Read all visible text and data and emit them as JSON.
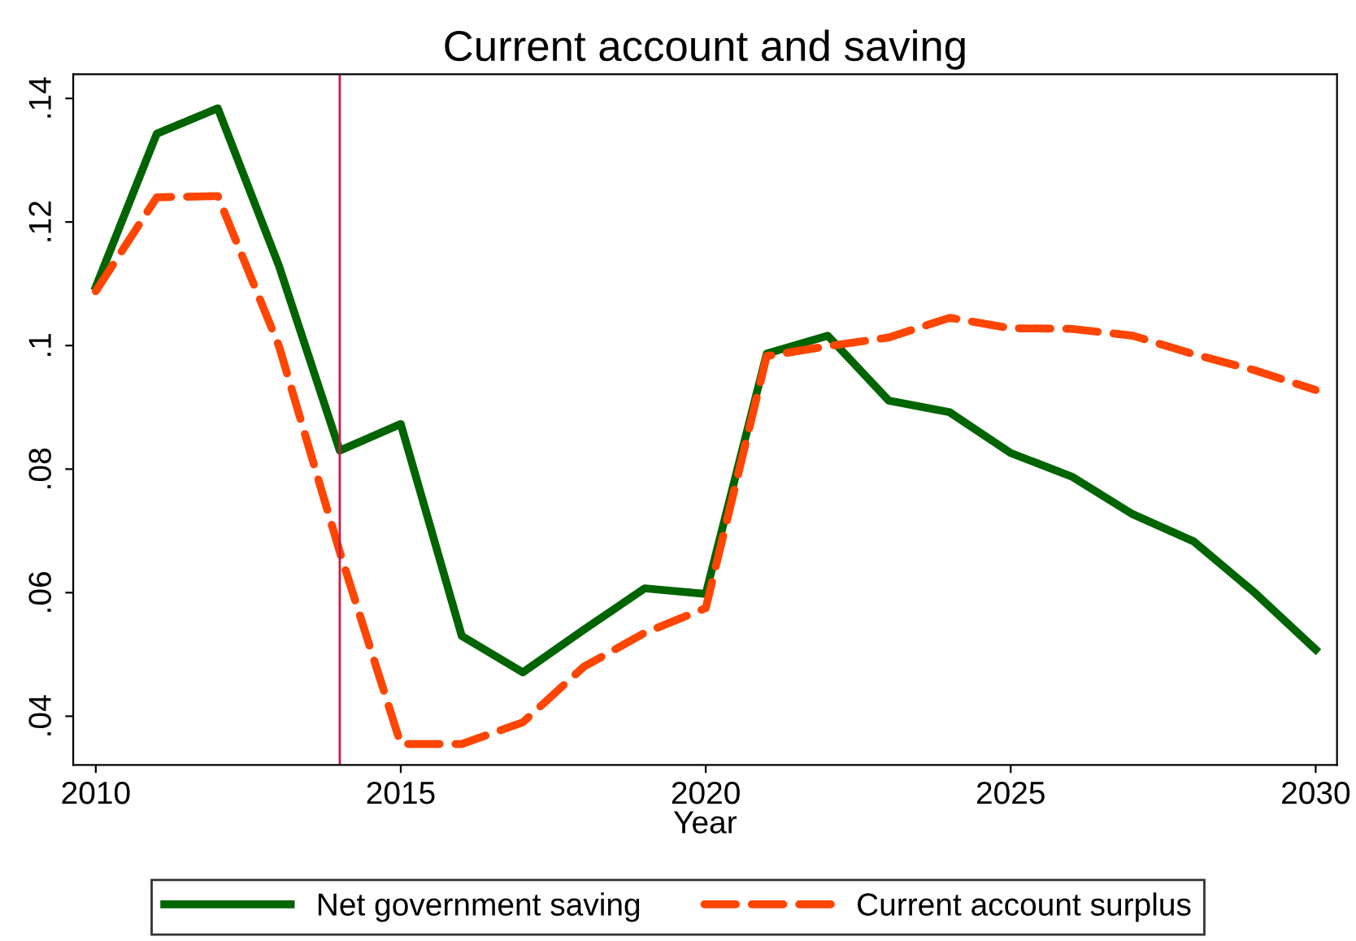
{
  "chart_data": {
    "type": "line",
    "title": "Current account and saving",
    "xlabel": "Year",
    "x": [
      2010,
      2011,
      2012,
      2013,
      2014,
      2015,
      2016,
      2017,
      2018,
      2019,
      2020,
      2021,
      2022,
      2023,
      2024,
      2025,
      2026,
      2027,
      2028,
      2029,
      2030
    ],
    "series": [
      {
        "name": "Net government saving",
        "color": "#006400",
        "line_style": "solid",
        "values": [
          0.1095,
          0.1343,
          0.1384,
          0.113,
          0.083,
          0.0873,
          0.053,
          0.0471,
          0.054,
          0.0607,
          0.0598,
          0.0987,
          0.1016,
          0.0911,
          0.0892,
          0.0826,
          0.0788,
          0.0727,
          0.0683,
          0.06,
          0.0508
        ]
      },
      {
        "name": "Current account surplus",
        "color": "#ff4500",
        "line_style": "dashed",
        "values": [
          0.1088,
          0.124,
          0.1242,
          0.1,
          0.0666,
          0.0355,
          0.0355,
          0.039,
          0.048,
          0.0535,
          0.0575,
          0.0983,
          0.0999,
          0.1013,
          0.1045,
          0.1028,
          0.1027,
          0.1016,
          0.0986,
          0.096,
          0.0928
        ]
      }
    ],
    "xlim": [
      2009.63,
      2030.35
    ],
    "ylim": [
      0.0321,
      0.1439
    ],
    "xticks": [
      2010,
      2015,
      2020,
      2025,
      2030
    ],
    "yticks": [
      {
        "value": 0.04,
        "label": ".04"
      },
      {
        "value": 0.06,
        "label": ".06"
      },
      {
        "value": 0.08,
        "label": ".08"
      },
      {
        "value": 0.1,
        "label": ".1"
      },
      {
        "value": 0.12,
        "label": ".12"
      },
      {
        "value": 0.14,
        "label": ".14"
      }
    ],
    "ref_lines": [
      {
        "axis": "x",
        "value": 2014,
        "color": "#c8194b"
      }
    ],
    "grid": false,
    "legend": "bottom"
  }
}
